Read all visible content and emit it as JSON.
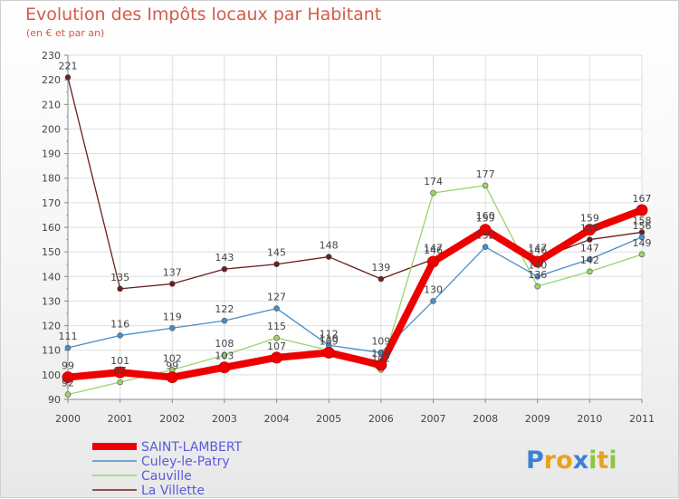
{
  "chart_data": {
    "type": "line",
    "title": "Evolution des Impôts locaux par Habitant",
    "subtitle": "(en € et par an)",
    "xlabel": "",
    "ylabel": "",
    "categories": [
      "2000",
      "2001",
      "2002",
      "2003",
      "2004",
      "2005",
      "2006",
      "2007",
      "2008",
      "2009",
      "2010",
      "2011"
    ],
    "ylim": [
      90,
      230
    ],
    "yticks": [
      90,
      100,
      110,
      120,
      130,
      140,
      150,
      160,
      170,
      180,
      190,
      200,
      210,
      220,
      230
    ],
    "grid": true,
    "legend_position": "bottom-left",
    "series": [
      {
        "name": "La Villette",
        "color": "#6b1e1e",
        "values": [
          221,
          135,
          137,
          143,
          145,
          148,
          139,
          147,
          160,
          147,
          155,
          158
        ]
      },
      {
        "name": "Cauville",
        "color": "#9ad46a",
        "values": [
          92,
          97,
          102,
          108,
          115,
          110,
          102,
          174,
          177,
          136,
          142,
          149
        ]
      },
      {
        "name": "Culey-le-Patry",
        "color": "#4a8ec8",
        "values": [
          111,
          116,
          119,
          122,
          127,
          112,
          109,
          130,
          152,
          140,
          147,
          156
        ]
      },
      {
        "name": "SAINT-LAMBERT",
        "color": "#ee0000",
        "values": [
          99,
          101,
          99,
          103,
          107,
          109,
          104,
          146,
          159,
          146,
          159,
          167
        ]
      }
    ],
    "legend_order": [
      "SAINT-LAMBERT",
      "Culey-le-Patry",
      "Cauville",
      "La Villette"
    ]
  },
  "logo": {
    "text": "Proxiti",
    "letters": [
      {
        "ch": "P",
        "color": "#3e7fd6"
      },
      {
        "ch": "r",
        "color": "#e8a21c"
      },
      {
        "ch": "o",
        "color": "#e8a21c"
      },
      {
        "ch": "x",
        "color": "#3e7fd6"
      },
      {
        "ch": "i",
        "color": "#8cc63f"
      },
      {
        "ch": "t",
        "color": "#e8a21c"
      },
      {
        "ch": "i",
        "color": "#8cc63f"
      }
    ]
  }
}
